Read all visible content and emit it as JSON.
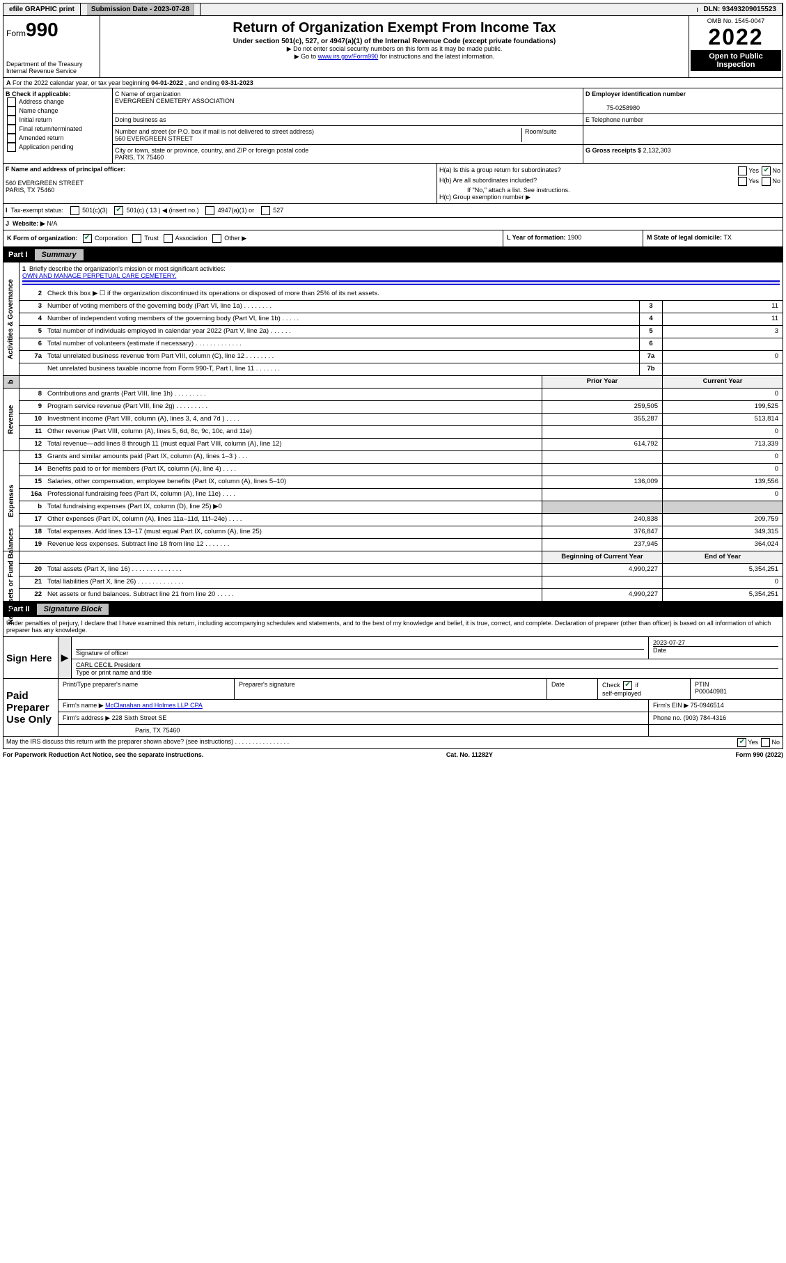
{
  "topbar": {
    "efile": "efile GRAPHIC print",
    "sub_label": "Submission Date - 2023-07-28",
    "dln": "DLN: 93493209015523"
  },
  "header": {
    "form_prefix": "Form",
    "form_number": "990",
    "dept": "Department of the Treasury\nInternal Revenue Service",
    "title": "Return of Organization Exempt From Income Tax",
    "sub1": "Under section 501(c), 527, or 4947(a)(1) of the Internal Revenue Code (except private foundations)",
    "instr1": "▶ Do not enter social security numbers on this form as it may be made public.",
    "instr2a": "▶ Go to ",
    "instr2_link": "www.irs.gov/Form990",
    "instr2b": " for instructions and the latest information.",
    "omb": "OMB No. 1545-0047",
    "year": "2022",
    "open": "Open to Public Inspection"
  },
  "lineA": {
    "text_a": "For the 2022 calendar year, or tax year beginning ",
    "date1": "04-01-2022",
    "text_b": " , and ending ",
    "date2": "03-31-2023"
  },
  "boxB": {
    "label": "B Check if applicable:",
    "opts": [
      "Address change",
      "Name change",
      "Initial return",
      "Final return/terminated",
      "Amended return",
      "Application pending"
    ]
  },
  "boxC": {
    "name_lbl": "C Name of organization",
    "name": "EVERGREEN CEMETERY ASSOCIATION",
    "dba_lbl": "Doing business as",
    "street_lbl": "Number and street (or P.O. box if mail is not delivered to street address)",
    "street": "560 EVERGREEN STREET",
    "room_lbl": "Room/suite",
    "city_lbl": "City or town, state or province, country, and ZIP or foreign postal code",
    "city": "PARIS, TX  75460"
  },
  "boxD": {
    "lbl": "D Employer identification number",
    "val": "75-0258980"
  },
  "boxE": {
    "lbl": "E Telephone number"
  },
  "boxG": {
    "lbl": "G Gross receipts $",
    "val": "2,132,303"
  },
  "boxF": {
    "lbl": "F Name and address of principal officer:",
    "line1": "560 EVERGREEN STREET",
    "line2": "PARIS, TX  75460"
  },
  "boxH": {
    "ha": "H(a)  Is this a group return for subordinates?",
    "hb": "H(b)  Are all subordinates included?",
    "hb_note": "If \"No,\" attach a list. See instructions.",
    "hc": "H(c)  Group exemption number ▶"
  },
  "boxI": {
    "lbl": "Tax-exempt status:",
    "c3": "501(c)(3)",
    "c_ins": "501(c) ( 13 ) ◀ (insert no.)",
    "c4947": "4947(a)(1) or",
    "c527": "527"
  },
  "boxJ": {
    "lbl": "Website: ▶",
    "val": "N/A"
  },
  "boxK": {
    "lbl": "K Form of organization:",
    "opts": [
      "Corporation",
      "Trust",
      "Association",
      "Other ▶"
    ]
  },
  "boxL": {
    "lbl": "L Year of formation:",
    "val": "1900"
  },
  "boxM": {
    "lbl": "M State of legal domicile:",
    "val": "TX"
  },
  "part1": {
    "label": "Part I",
    "title": "Summary"
  },
  "summary": {
    "q1": "Briefly describe the organization's mission or most significant activities:",
    "mission": "OWN AND MANAGE PERPETUAL CARE CEMETERY.",
    "q2": "Check this box ▶ ☐  if the organization discontinued its operations or disposed of more than 25% of its net assets.",
    "rows_top": [
      {
        "n": "3",
        "l": "Number of voting members of the governing body (Part VI, line 1a)  .    .    .    .    .    .    .    .",
        "b": "3",
        "v": "11"
      },
      {
        "n": "4",
        "l": "Number of independent voting members of the governing body (Part VI, line 1b)  .    .    .    .    .",
        "b": "4",
        "v": "11"
      },
      {
        "n": "5",
        "l": "Total number of individuals employed in calendar year 2022 (Part V, line 2a)  .    .    .    .    .    .",
        "b": "5",
        "v": "3"
      },
      {
        "n": "6",
        "l": "Total number of volunteers (estimate if necessary)  .    .    .    .    .    .    .    .    .    .    .    .    .",
        "b": "6",
        "v": ""
      },
      {
        "n": "7a",
        "l": "Total unrelated business revenue from Part VIII, column (C), line 12  .    .    .    .    .    .    .    .",
        "b": "7a",
        "v": "0"
      },
      {
        "n": "",
        "l": "Net unrelated business taxable income from Form 990-T, Part I, line 11  .    .    .    .    .    .    .",
        "b": "7b",
        "v": ""
      }
    ],
    "col_head_prior": "Prior Year",
    "col_head_curr": "Current Year",
    "rows_rev": [
      {
        "n": "8",
        "l": "Contributions and grants (Part VIII, line 1h)  .    .    .    .    .    .    .    .    .",
        "p": "",
        "c": "0"
      },
      {
        "n": "9",
        "l": "Program service revenue (Part VIII, line 2g)  .    .    .    .    .    .    .    .    .",
        "p": "259,505",
        "c": "199,525"
      },
      {
        "n": "10",
        "l": "Investment income (Part VIII, column (A), lines 3, 4, and 7d )  .    .    .    .",
        "p": "355,287",
        "c": "513,814"
      },
      {
        "n": "11",
        "l": "Other revenue (Part VIII, column (A), lines 5, 6d, 8c, 9c, 10c, and 11e)",
        "p": "",
        "c": "0"
      },
      {
        "n": "12",
        "l": "Total revenue—add lines 8 through 11 (must equal Part VIII, column (A), line 12)",
        "p": "614,792",
        "c": "713,339"
      }
    ],
    "rows_exp": [
      {
        "n": "13",
        "l": "Grants and similar amounts paid (Part IX, column (A), lines 1–3 )  .    .    .",
        "p": "",
        "c": "0"
      },
      {
        "n": "14",
        "l": "Benefits paid to or for members (Part IX, column (A), line 4)  .    .    .    .",
        "p": "",
        "c": "0"
      },
      {
        "n": "15",
        "l": "Salaries, other compensation, employee benefits (Part IX, column (A), lines 5–10)",
        "p": "136,009",
        "c": "139,556"
      },
      {
        "n": "16a",
        "l": "Professional fundraising fees (Part IX, column (A), line 11e)  .    .    .    .",
        "p": "",
        "c": "0"
      },
      {
        "n": "b",
        "l": "Total fundraising expenses (Part IX, column (D), line 25) ▶0",
        "p": "shade",
        "c": "shade"
      },
      {
        "n": "17",
        "l": "Other expenses (Part IX, column (A), lines 11a–11d, 11f–24e)  .    .    .    .",
        "p": "240,838",
        "c": "209,759"
      },
      {
        "n": "18",
        "l": "Total expenses. Add lines 13–17 (must equal Part IX, column (A), line 25)",
        "p": "376,847",
        "c": "349,315"
      },
      {
        "n": "19",
        "l": "Revenue less expenses. Subtract line 18 from line 12  .    .    .    .    .    .    .",
        "p": "237,945",
        "c": "364,024"
      }
    ],
    "col_head_beg": "Beginning of Current Year",
    "col_head_end": "End of Year",
    "rows_net": [
      {
        "n": "20",
        "l": "Total assets (Part X, line 16)  .    .    .    .    .    .    .    .    .    .    .    .    .    .",
        "p": "4,990,227",
        "c": "5,354,251"
      },
      {
        "n": "21",
        "l": "Total liabilities (Part X, line 26)  .    .    .    .    .    .    .    .    .    .    .    .    .",
        "p": "",
        "c": "0"
      },
      {
        "n": "22",
        "l": "Net assets or fund balances. Subtract line 21 from line 20  .    .    .    .    .",
        "p": "4,990,227",
        "c": "5,354,251"
      }
    ],
    "side": {
      "gov": "Activities & Governance",
      "rev": "Revenue",
      "exp": "Expenses",
      "net": "Net Assets or Fund Balances"
    }
  },
  "part2": {
    "label": "Part II",
    "title": "Signature Block"
  },
  "sig": {
    "disclaimer": "Under penalties of perjury, I declare that I have examined this return, including accompanying schedules and statements, and to the best of my knowledge and belief, it is true, correct, and complete. Declaration of preparer (other than officer) is based on all information of which preparer has any knowledge.",
    "sign_here": "Sign Here",
    "sig_officer": "Signature of officer",
    "date_lbl": "Date",
    "date_val": "2023-07-27",
    "name_title": "CARL CECIL  President",
    "type_name": "Type or print name and title",
    "paid": "Paid Preparer Use Only",
    "print_type": "Print/Type preparer's name",
    "prep_sig": "Preparer's signature",
    "check_if": "Check ☑ if self-employed",
    "ptin_lbl": "PTIN",
    "ptin": "P00040981",
    "firm_name_lbl": "Firm's name    ▶",
    "firm_name": "McClanahan and Holmes LLP CPA",
    "firm_ein_lbl": "Firm's EIN ▶",
    "firm_ein": "75-0946514",
    "firm_addr_lbl": "Firm's address ▶",
    "firm_addr1": "228 Sixth Street SE",
    "firm_addr2": "Paris, TX  75460",
    "phone_lbl": "Phone no.",
    "phone": "(903) 784-4316",
    "may_irs": "May the IRS discuss this return with the preparer shown above? (see instructions)  .    .    .    .    .    .    .    .    .    .    .    .    .    .    .    ."
  },
  "footer": {
    "pra": "For Paperwork Reduction Act Notice, see the separate instructions.",
    "cat": "Cat. No. 11282Y",
    "form": "Form 990 (2022)"
  },
  "style": {
    "link_color": "#0000cc",
    "header_bg": "#000000",
    "shade_bg": "#d0d0d0",
    "check_color": "#0a7a3a"
  }
}
